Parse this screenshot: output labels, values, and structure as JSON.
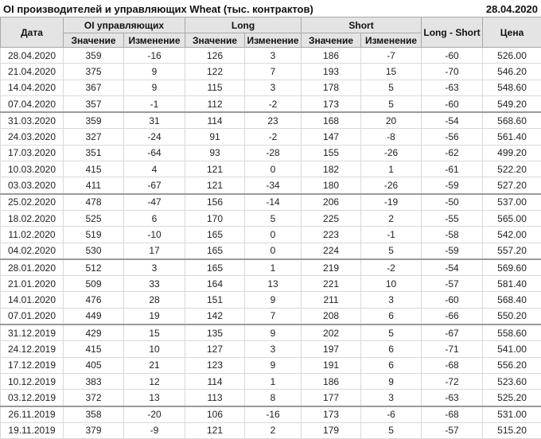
{
  "title": "OI производителей и управляющих Wheat (тыс. контрактов)",
  "report_date": "28.04.2020",
  "colors": {
    "positive_change": "#18a018",
    "negative_change": "#cc1111",
    "header_bg": "#e4e4e4"
  },
  "table": {
    "col_date": "Дата",
    "groups": [
      {
        "label": "OI управляющих"
      },
      {
        "label": "Long"
      },
      {
        "label": "Short"
      }
    ],
    "sub_value": "Значение",
    "sub_change": "Изменение",
    "col_long_short": "Long - Short",
    "col_price": "Цена",
    "rows": [
      {
        "date": "28.04.2020",
        "oi": "359",
        "oi_chg": "-16",
        "long": "126",
        "long_chg": "3",
        "short": "186",
        "short_chg": "-7",
        "long_short": "-60",
        "price": "526.00",
        "month_start": false
      },
      {
        "date": "21.04.2020",
        "oi": "375",
        "oi_chg": "9",
        "long": "122",
        "long_chg": "7",
        "short": "193",
        "short_chg": "15",
        "long_short": "-70",
        "price": "546.20",
        "month_start": false
      },
      {
        "date": "14.04.2020",
        "oi": "367",
        "oi_chg": "9",
        "long": "115",
        "long_chg": "3",
        "short": "178",
        "short_chg": "5",
        "long_short": "-63",
        "price": "548.60",
        "month_start": false
      },
      {
        "date": "07.04.2020",
        "oi": "357",
        "oi_chg": "-1",
        "long": "112",
        "long_chg": "-2",
        "short": "173",
        "short_chg": "5",
        "long_short": "-60",
        "price": "549.20",
        "month_start": false
      },
      {
        "date": "31.03.2020",
        "oi": "359",
        "oi_chg": "31",
        "long": "114",
        "long_chg": "23",
        "short": "168",
        "short_chg": "20",
        "long_short": "-54",
        "price": "568.60",
        "month_start": true
      },
      {
        "date": "24.03.2020",
        "oi": "327",
        "oi_chg": "-24",
        "long": "91",
        "long_chg": "-2",
        "short": "147",
        "short_chg": "-8",
        "long_short": "-56",
        "price": "561.40",
        "month_start": false
      },
      {
        "date": "17.03.2020",
        "oi": "351",
        "oi_chg": "-64",
        "long": "93",
        "long_chg": "-28",
        "short": "155",
        "short_chg": "-26",
        "long_short": "-62",
        "price": "499.20",
        "month_start": false
      },
      {
        "date": "10.03.2020",
        "oi": "415",
        "oi_chg": "4",
        "long": "121",
        "long_chg": "0",
        "short": "182",
        "short_chg": "1",
        "long_short": "-61",
        "price": "522.20",
        "month_start": false
      },
      {
        "date": "03.03.2020",
        "oi": "411",
        "oi_chg": "-67",
        "long": "121",
        "long_chg": "-34",
        "short": "180",
        "short_chg": "-26",
        "long_short": "-59",
        "price": "527.20",
        "month_start": false
      },
      {
        "date": "25.02.2020",
        "oi": "478",
        "oi_chg": "-47",
        "long": "156",
        "long_chg": "-14",
        "short": "206",
        "short_chg": "-19",
        "long_short": "-50",
        "price": "537.00",
        "month_start": true
      },
      {
        "date": "18.02.2020",
        "oi": "525",
        "oi_chg": "6",
        "long": "170",
        "long_chg": "5",
        "short": "225",
        "short_chg": "2",
        "long_short": "-55",
        "price": "565.00",
        "month_start": false
      },
      {
        "date": "11.02.2020",
        "oi": "519",
        "oi_chg": "-10",
        "long": "165",
        "long_chg": "0",
        "short": "223",
        "short_chg": "-1",
        "long_short": "-58",
        "price": "542.00",
        "month_start": false
      },
      {
        "date": "04.02.2020",
        "oi": "530",
        "oi_chg": "17",
        "long": "165",
        "long_chg": "0",
        "short": "224",
        "short_chg": "5",
        "long_short": "-59",
        "price": "557.20",
        "month_start": false
      },
      {
        "date": "28.01.2020",
        "oi": "512",
        "oi_chg": "3",
        "long": "165",
        "long_chg": "1",
        "short": "219",
        "short_chg": "-2",
        "long_short": "-54",
        "price": "569.60",
        "month_start": true
      },
      {
        "date": "21.01.2020",
        "oi": "509",
        "oi_chg": "33",
        "long": "164",
        "long_chg": "13",
        "short": "221",
        "short_chg": "10",
        "long_short": "-57",
        "price": "581.40",
        "month_start": false
      },
      {
        "date": "14.01.2020",
        "oi": "476",
        "oi_chg": "28",
        "long": "151",
        "long_chg": "9",
        "short": "211",
        "short_chg": "3",
        "long_short": "-60",
        "price": "568.40",
        "month_start": false
      },
      {
        "date": "07.01.2020",
        "oi": "449",
        "oi_chg": "19",
        "long": "142",
        "long_chg": "7",
        "short": "208",
        "short_chg": "6",
        "long_short": "-66",
        "price": "550.20",
        "month_start": false
      },
      {
        "date": "31.12.2019",
        "oi": "429",
        "oi_chg": "15",
        "long": "135",
        "long_chg": "9",
        "short": "202",
        "short_chg": "5",
        "long_short": "-67",
        "price": "558.60",
        "month_start": true
      },
      {
        "date": "24.12.2019",
        "oi": "415",
        "oi_chg": "10",
        "long": "127",
        "long_chg": "3",
        "short": "197",
        "short_chg": "6",
        "long_short": "-71",
        "price": "541.00",
        "month_start": false
      },
      {
        "date": "17.12.2019",
        "oi": "405",
        "oi_chg": "21",
        "long": "123",
        "long_chg": "9",
        "short": "191",
        "short_chg": "6",
        "long_short": "-68",
        "price": "556.20",
        "month_start": false
      },
      {
        "date": "10.12.2019",
        "oi": "383",
        "oi_chg": "12",
        "long": "114",
        "long_chg": "1",
        "short": "186",
        "short_chg": "9",
        "long_short": "-72",
        "price": "523.60",
        "month_start": false
      },
      {
        "date": "03.12.2019",
        "oi": "372",
        "oi_chg": "13",
        "long": "113",
        "long_chg": "8",
        "short": "177",
        "short_chg": "3",
        "long_short": "-63",
        "price": "525.20",
        "month_start": false
      },
      {
        "date": "26.11.2019",
        "oi": "358",
        "oi_chg": "-20",
        "long": "106",
        "long_chg": "-16",
        "short": "173",
        "short_chg": "-6",
        "long_short": "-68",
        "price": "531.00",
        "month_start": true
      },
      {
        "date": "19.11.2019",
        "oi": "379",
        "oi_chg": "-9",
        "long": "121",
        "long_chg": "2",
        "short": "179",
        "short_chg": "5",
        "long_short": "-57",
        "price": "515.20",
        "month_start": false
      }
    ]
  }
}
